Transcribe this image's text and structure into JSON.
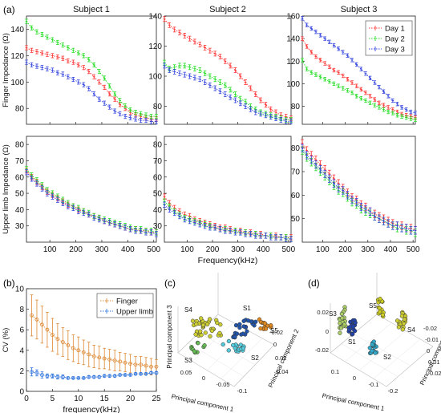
{
  "panel_labels": {
    "a": "(a)",
    "b": "(b)",
    "c": "(c)",
    "d": "(d)"
  },
  "colors": {
    "day1": "#ff3333",
    "day2": "#22dd22",
    "day3": "#3344dd",
    "finger": "#dd8833",
    "upper": "#3377dd"
  },
  "chart_data": [
    {
      "id": "a-s1-finger",
      "type": "line",
      "title": "Subject  1",
      "subject": "s1",
      "ylabel": "Finger Impedance (Ω)",
      "xlabel": "",
      "xlim": [
        10,
        510
      ],
      "ylim": [
        68,
        150
      ],
      "yticks": [
        80,
        100,
        120,
        140
      ],
      "xticks": [
        100,
        200,
        300,
        400,
        500
      ],
      "show_xtick_labels": false,
      "x": [
        10,
        30,
        50,
        70,
        90,
        110,
        130,
        150,
        170,
        190,
        210,
        230,
        250,
        270,
        290,
        310,
        330,
        350,
        370,
        390,
        410,
        430,
        450,
        470,
        490,
        510
      ],
      "series": [
        {
          "name": "Day 1",
          "key": "day1",
          "values": [
            126,
            124,
            123,
            122,
            121,
            120,
            119,
            118,
            116,
            115,
            113,
            111,
            108,
            104,
            100,
            96,
            91,
            87,
            83,
            80,
            77,
            75,
            74,
            73,
            72,
            72
          ]
        },
        {
          "name": "Day 2",
          "key": "day2",
          "values": [
            146,
            141,
            138,
            136,
            134,
            132,
            130,
            128,
            126,
            124,
            122,
            120,
            117,
            113,
            108,
            103,
            97,
            91,
            86,
            82,
            79,
            77,
            76,
            75,
            74,
            74
          ]
        },
        {
          "name": "Day 3",
          "key": "day3",
          "values": [
            115,
            113,
            112,
            111,
            110,
            109,
            107,
            106,
            104,
            102,
            100,
            98,
            95,
            91,
            87,
            84,
            81,
            78,
            76,
            74,
            73,
            72,
            71,
            71,
            70,
            70
          ]
        }
      ]
    },
    {
      "id": "a-s2-finger",
      "type": "line",
      "title": "Subject  2",
      "subject": "s2",
      "ylabel": "",
      "xlabel": "",
      "xlim": [
        10,
        510
      ],
      "ylim": [
        68,
        140
      ],
      "yticks": [
        80,
        100,
        120,
        140
      ],
      "xticks": [
        100,
        200,
        300,
        400,
        500
      ],
      "show_xtick_labels": false,
      "x": [
        10,
        30,
        50,
        70,
        90,
        110,
        130,
        150,
        170,
        190,
        210,
        230,
        250,
        270,
        290,
        310,
        330,
        350,
        370,
        390,
        410,
        430,
        450,
        470,
        490,
        510
      ],
      "series": [
        {
          "name": "Day 1",
          "key": "day1",
          "values": [
            138,
            134,
            131,
            129,
            127,
            125,
            123,
            121,
            119,
            117,
            115,
            113,
            110,
            107,
            104,
            100,
            96,
            92,
            88,
            84,
            81,
            78,
            76,
            74,
            73,
            72
          ]
        },
        {
          "name": "Day 2",
          "key": "day2",
          "values": [
            109,
            105,
            106,
            107,
            107,
            106,
            105,
            104,
            102,
            100,
            98,
            96,
            94,
            91,
            88,
            85,
            83,
            80,
            78,
            76,
            75,
            74,
            73,
            72,
            71,
            71
          ]
        },
        {
          "name": "Day 3",
          "key": "day3",
          "values": [
            107,
            104,
            103,
            102,
            101,
            100,
            99,
            98,
            96,
            94,
            92,
            90,
            88,
            86,
            84,
            82,
            80,
            78,
            76,
            75,
            74,
            73,
            72,
            71,
            70,
            70
          ]
        }
      ]
    },
    {
      "id": "a-s3-finger",
      "type": "line",
      "title": "Subject  3",
      "subject": "s3",
      "ylabel": "",
      "xlabel": "",
      "xlim": [
        10,
        510
      ],
      "ylim": [
        64,
        160
      ],
      "yticks": [
        80,
        100,
        120,
        140,
        160
      ],
      "xticks": [
        100,
        200,
        300,
        400,
        500
      ],
      "show_xtick_labels": false,
      "legend": {
        "position": "top-right",
        "entries": [
          "Day 1",
          "Day 2",
          "Day 3"
        ]
      },
      "x": [
        10,
        30,
        50,
        70,
        90,
        110,
        130,
        150,
        170,
        190,
        210,
        230,
        250,
        270,
        290,
        310,
        330,
        350,
        370,
        390,
        410,
        430,
        450,
        470,
        490,
        510
      ],
      "series": [
        {
          "name": "Day 1",
          "key": "day1",
          "values": [
            140,
            133,
            128,
            124,
            121,
            118,
            115,
            112,
            110,
            107,
            104,
            101,
            98,
            95,
            92,
            89,
            86,
            83,
            81,
            79,
            77,
            75,
            73,
            72,
            71,
            70
          ]
        },
        {
          "name": "Day 2",
          "key": "day2",
          "values": [
            121,
            113,
            110,
            108,
            106,
            104,
            102,
            100,
            98,
            96,
            94,
            92,
            89,
            87,
            85,
            83,
            81,
            79,
            77,
            75,
            74,
            72,
            71,
            70,
            69,
            68
          ]
        },
        {
          "name": "Day 3",
          "key": "day3",
          "values": [
            158,
            152,
            149,
            146,
            143,
            140,
            137,
            134,
            131,
            128,
            125,
            121,
            117,
            113,
            109,
            105,
            101,
            97,
            93,
            89,
            85,
            82,
            79,
            77,
            75,
            74
          ]
        }
      ]
    },
    {
      "id": "a-s1-upper",
      "type": "line",
      "title": "",
      "subject": "s1",
      "ylabel": "Upper limb Impedance (Ω)",
      "xlabel": "",
      "xlim": [
        10,
        510
      ],
      "ylim": [
        20,
        85
      ],
      "yticks": [
        30,
        40,
        50,
        60,
        70,
        80
      ],
      "xticks": [
        100,
        200,
        300,
        400,
        500
      ],
      "show_xtick_labels": true,
      "x": [
        10,
        30,
        50,
        70,
        90,
        110,
        130,
        150,
        170,
        190,
        210,
        230,
        250,
        270,
        290,
        310,
        330,
        350,
        370,
        390,
        410,
        430,
        450,
        470,
        490,
        510
      ],
      "series": [
        {
          "name": "Day 1",
          "key": "day1",
          "values": [
            64,
            60,
            57,
            54,
            51,
            49,
            47,
            45,
            43,
            42,
            40,
            39,
            37,
            36,
            35,
            33,
            32,
            31,
            30,
            29,
            28,
            28,
            27,
            27,
            26,
            26
          ]
        },
        {
          "name": "Day 2",
          "key": "day2",
          "values": [
            65,
            61,
            58,
            55,
            52,
            50,
            48,
            46,
            44,
            42,
            41,
            39,
            38,
            36,
            35,
            34,
            33,
            32,
            31,
            30,
            29,
            28,
            28,
            27,
            27,
            26
          ]
        },
        {
          "name": "Day 3",
          "key": "day3",
          "values": [
            63,
            59,
            56,
            53,
            50,
            48,
            46,
            44,
            42,
            41,
            39,
            38,
            37,
            35,
            34,
            33,
            32,
            31,
            30,
            29,
            28,
            27,
            27,
            26,
            26,
            25
          ]
        }
      ]
    },
    {
      "id": "a-s2-upper",
      "type": "line",
      "title": "",
      "subject": "s2",
      "ylabel": "",
      "xlabel": "Frequency(kHz)",
      "xlim": [
        10,
        510
      ],
      "ylim": [
        20,
        85
      ],
      "yticks": [
        30,
        40,
        50,
        60,
        70,
        80
      ],
      "xticks": [
        100,
        200,
        300,
        400,
        500
      ],
      "show_xtick_labels": true,
      "x": [
        10,
        30,
        50,
        70,
        90,
        110,
        130,
        150,
        170,
        190,
        210,
        230,
        250,
        270,
        290,
        310,
        330,
        350,
        370,
        390,
        410,
        430,
        450,
        470,
        490,
        510
      ],
      "series": [
        {
          "name": "Day 1",
          "key": "day1",
          "values": [
            48,
            44,
            41,
            39,
            37,
            36,
            34,
            33,
            32,
            31,
            30,
            29,
            29,
            28,
            27,
            27,
            26,
            26,
            25,
            25,
            24,
            24,
            24,
            23,
            23,
            23
          ]
        },
        {
          "name": "Day 2",
          "key": "day2",
          "values": [
            45,
            42,
            39,
            37,
            35,
            34,
            33,
            32,
            31,
            30,
            29,
            28,
            28,
            27,
            27,
            26,
            26,
            25,
            25,
            24,
            24,
            24,
            23,
            23,
            23,
            22
          ]
        },
        {
          "name": "Day 3",
          "key": "day3",
          "values": [
            43,
            40,
            38,
            36,
            34,
            33,
            32,
            31,
            30,
            29,
            29,
            28,
            27,
            27,
            26,
            26,
            25,
            25,
            24,
            24,
            24,
            23,
            23,
            23,
            22,
            22
          ]
        }
      ]
    },
    {
      "id": "a-s3-upper",
      "type": "line",
      "title": "",
      "subject": "s3",
      "ylabel": "",
      "xlabel": "",
      "xlim": [
        10,
        510
      ],
      "ylim": [
        40,
        85
      ],
      "yticks": [
        50,
        60,
        70,
        80
      ],
      "xticks": [
        100,
        200,
        300,
        400,
        500
      ],
      "show_xtick_labels": true,
      "x": [
        10,
        30,
        50,
        70,
        90,
        110,
        130,
        150,
        170,
        190,
        210,
        230,
        250,
        270,
        290,
        310,
        330,
        350,
        370,
        390,
        410,
        430,
        450,
        470,
        490,
        510
      ],
      "series": [
        {
          "name": "Day 1",
          "key": "day1",
          "values": [
            82,
            79,
            77,
            75,
            73,
            71,
            69,
            67,
            65,
            63,
            61,
            59,
            58,
            56,
            55,
            53,
            52,
            51,
            50,
            49,
            48,
            47,
            47,
            46,
            46,
            45
          ]
        },
        {
          "name": "Day 2",
          "key": "day2",
          "values": [
            79,
            76,
            74,
            72,
            70,
            68,
            66,
            64,
            62,
            61,
            59,
            57,
            56,
            54,
            53,
            52,
            51,
            50,
            49,
            48,
            47,
            46,
            46,
            45,
            45,
            44
          ]
        },
        {
          "name": "Day 3",
          "key": "day3",
          "values": [
            80,
            77,
            75,
            73,
            71,
            69,
            67,
            65,
            63,
            62,
            60,
            58,
            57,
            55,
            54,
            53,
            51,
            50,
            49,
            48,
            47,
            47,
            46,
            46,
            45,
            45
          ]
        }
      ]
    },
    {
      "id": "b-cv",
      "type": "line",
      "title": "",
      "ylabel": "CV (%)",
      "xlabel": "frequency(kHz)",
      "xlim": [
        0,
        25
      ],
      "ylim": [
        0,
        10
      ],
      "xticks": [
        0,
        5,
        10,
        15,
        20,
        25
      ],
      "yticks": [
        0,
        2,
        4,
        6,
        8,
        10
      ],
      "legend": {
        "position": "top-right",
        "entries": [
          "Finger",
          "Upper limb"
        ]
      },
      "x": [
        1,
        2,
        3,
        4,
        5,
        6,
        7,
        8,
        9,
        10,
        11,
        12,
        13,
        14,
        15,
        16,
        17,
        18,
        19,
        20,
        21,
        22,
        23,
        24,
        25
      ],
      "series": [
        {
          "name": "Finger",
          "key": "finger",
          "values": [
            7.4,
            7.0,
            6.5,
            6.0,
            5.5,
            5.1,
            4.8,
            4.5,
            4.2,
            4.0,
            3.8,
            3.6,
            3.4,
            3.3,
            3.2,
            3.1,
            3.0,
            2.9,
            2.8,
            2.7,
            2.6,
            2.6,
            2.5,
            2.4,
            2.4
          ],
          "err": [
            2.0,
            1.9,
            1.8,
            1.7,
            1.6,
            1.5,
            1.4,
            1.4,
            1.3,
            1.3,
            1.2,
            1.2,
            1.1,
            1.1,
            1.0,
            1.0,
            1.0,
            0.9,
            0.9,
            0.9,
            0.8,
            0.8,
            0.8,
            0.8,
            0.7
          ]
        },
        {
          "name": "Upper limb",
          "key": "upper",
          "values": [
            1.9,
            1.8,
            1.6,
            1.5,
            1.5,
            1.4,
            1.4,
            1.3,
            1.3,
            1.3,
            1.3,
            1.4,
            1.4,
            1.4,
            1.5,
            1.5,
            1.5,
            1.6,
            1.6,
            1.6,
            1.7,
            1.7,
            1.7,
            1.8,
            1.8
          ],
          "err": [
            0.4,
            0.3,
            0.3,
            0.2,
            0.2,
            0.2,
            0.2,
            0.1,
            0.1,
            0.1,
            0.1,
            0.1,
            0.1,
            0.1,
            0.1,
            0.1,
            0.1,
            0.1,
            0.1,
            0.1,
            0.1,
            0.1,
            0.1,
            0.1,
            0.1
          ]
        }
      ]
    },
    {
      "id": "c-pca",
      "type": "scatter",
      "title": "",
      "xlabel": "Principal component 1",
      "ylabel": "Principal component 2",
      "zlabel": "Principal component 3",
      "xtick_labels": [
        "0.05",
        "0",
        "-0.05",
        "-0.1"
      ],
      "ytick_labels": [
        "-0.02",
        "0",
        "0.02",
        "0.04"
      ],
      "clusters": [
        {
          "name": "S4",
          "color": "#cccc33"
        },
        {
          "name": "S1",
          "color": "#2255aa"
        },
        {
          "name": "S5",
          "color": "#dd8822"
        },
        {
          "name": "S2",
          "color": "#55ccdd"
        },
        {
          "name": "S3",
          "color": "#66bb55"
        }
      ]
    },
    {
      "id": "d-pca",
      "type": "scatter",
      "title": "",
      "xlabel": "Principal component 1",
      "ylabel": "Principal component 2",
      "xtick_labels": [
        "0.1",
        "0",
        "-0.1",
        "-0.2"
      ],
      "ytick_labels": [
        "-0.02",
        "-0.01",
        "0",
        "0.01",
        "0.02"
      ],
      "ztick_labels": [
        "0.02",
        "0",
        "-0.02"
      ],
      "clusters": [
        {
          "name": "S5",
          "color": "#cccc22"
        },
        {
          "name": "S3",
          "color": "#aacc66"
        },
        {
          "name": "S4",
          "color": "#cccc33"
        },
        {
          "name": "S1",
          "color": "#2244aa"
        },
        {
          "name": "S2",
          "color": "#33aacc"
        }
      ]
    }
  ]
}
